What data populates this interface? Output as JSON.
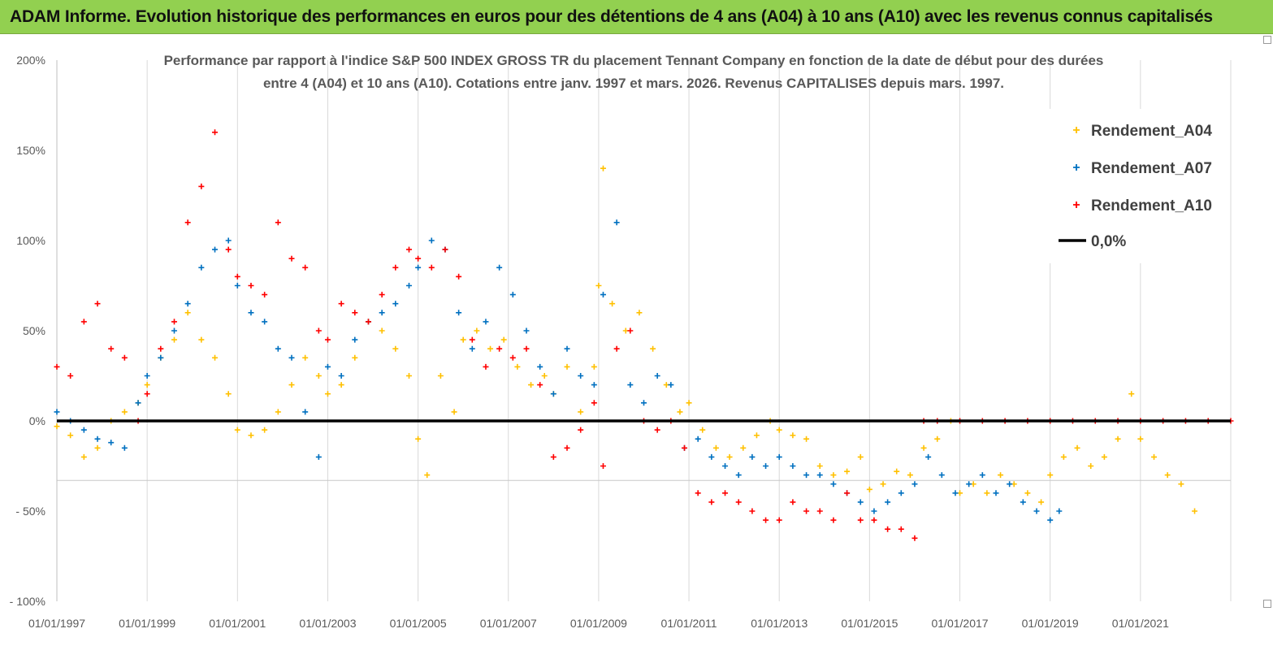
{
  "banner": {
    "title": "ADAM Informe. Evolution historique des performances en euros pour des détentions de 4 ans (A04) à 10 ans (A10) avec les revenus connus capitalisés"
  },
  "chart_data": {
    "type": "scatter",
    "title_line1": "Performance par rapport à l'indice S&P 500 INDEX GROSS TR  du placement Tennant Company en fonction de la date de début pour des durées",
    "title_line2": "entre 4 (A04) et 10 ans (A10). Cotations entre janv. 1997 et mars. 2026. Revenus CAPITALISES depuis mars. 1997.",
    "xlabel": "",
    "ylabel": "",
    "xlim": [
      1997.0,
      2023.0
    ],
    "ylim": [
      -100,
      200
    ],
    "y_ticks": [
      200,
      150,
      100,
      50,
      0,
      -50,
      -100
    ],
    "y_tick_labels": [
      "200%",
      "150%",
      "100%",
      "50%",
      "0%",
      "- 50%",
      "- 100%"
    ],
    "x_ticks": [
      1997,
      1999,
      2001,
      2003,
      2005,
      2007,
      2009,
      2011,
      2013,
      2015,
      2017,
      2019,
      2021
    ],
    "x_tick_labels": [
      "01/01/1997",
      "01/01/1999",
      "01/01/2001",
      "01/01/2003",
      "01/01/2005",
      "01/01/2007",
      "01/01/2009",
      "01/01/2011",
      "01/01/2013",
      "01/01/2015",
      "01/01/2017",
      "01/01/2019",
      "01/01/2021"
    ],
    "grid": "vertical",
    "legend_position": "top-right",
    "series": [
      {
        "name": "Rendement_A04",
        "color": "#ffc000",
        "x": [
          1997.0,
          1997.3,
          1997.6,
          1997.9,
          1998.2,
          1998.5,
          1998.8,
          1999.0,
          1999.3,
          1999.6,
          1999.9,
          2000.2,
          2000.5,
          2000.8,
          2001.0,
          2001.3,
          2001.6,
          2001.9,
          2002.2,
          2002.5,
          2002.8,
          2003.0,
          2003.3,
          2003.6,
          2003.9,
          2004.2,
          2004.5,
          2004.8,
          2005.0,
          2005.2,
          2005.5,
          2005.8,
          2006.0,
          2006.3,
          2006.6,
          2006.9,
          2007.2,
          2007.5,
          2007.8,
          2008.0,
          2008.3,
          2008.6,
          2008.9,
          2009.0,
          2009.1,
          2009.3,
          2009.6,
          2009.9,
          2010.2,
          2010.5,
          2010.8,
          2011.0,
          2011.3,
          2011.6,
          2011.9,
          2012.2,
          2012.5,
          2012.8,
          2013.0,
          2013.3,
          2013.6,
          2013.9,
          2014.2,
          2014.5,
          2014.8,
          2015.0,
          2015.3,
          2015.6,
          2015.9,
          2016.2,
          2016.5,
          2016.8,
          2017.0,
          2017.3,
          2017.6,
          2017.9,
          2018.2,
          2018.5,
          2018.8,
          2019.0,
          2019.3,
          2019.6,
          2019.9,
          2020.2,
          2020.5,
          2020.8,
          2021.0,
          2021.3,
          2021.6,
          2021.9,
          2022.2
        ],
        "y": [
          -3,
          -8,
          -20,
          -15,
          0,
          5,
          10,
          20,
          35,
          45,
          60,
          45,
          35,
          15,
          -5,
          -8,
          -5,
          5,
          20,
          35,
          25,
          15,
          20,
          35,
          55,
          50,
          40,
          25,
          -10,
          -30,
          25,
          5,
          45,
          50,
          40,
          45,
          30,
          20,
          25,
          15,
          30,
          5,
          30,
          75,
          140,
          65,
          50,
          60,
          40,
          20,
          5,
          10,
          -5,
          -15,
          -20,
          -15,
          -8,
          0,
          -5,
          -8,
          -10,
          -25,
          -30,
          -28,
          -20,
          -38,
          -35,
          -28,
          -30,
          -15,
          -10,
          0,
          -40,
          -35,
          -40,
          -30,
          -35,
          -40,
          -45,
          -30,
          -20,
          -15,
          -25,
          -20,
          -10,
          15,
          -10,
          -20,
          -30,
          -35,
          -50
        ]
      },
      {
        "name": "Rendement_A07",
        "color": "#0070c0",
        "x": [
          1997.0,
          1997.3,
          1997.6,
          1997.9,
          1998.2,
          1998.5,
          1998.8,
          1999.0,
          1999.3,
          1999.6,
          1999.9,
          2000.2,
          2000.5,
          2000.8,
          2001.0,
          2001.3,
          2001.6,
          2001.9,
          2002.2,
          2002.5,
          2002.8,
          2003.0,
          2003.3,
          2003.6,
          2003.9,
          2004.2,
          2004.5,
          2004.8,
          2005.0,
          2005.3,
          2005.6,
          2005.9,
          2006.2,
          2006.5,
          2006.8,
          2007.1,
          2007.4,
          2007.7,
          2008.0,
          2008.3,
          2008.6,
          2008.9,
          2009.1,
          2009.4,
          2009.7,
          2010.0,
          2010.3,
          2010.6,
          2010.9,
          2011.2,
          2011.5,
          2011.8,
          2012.1,
          2012.4,
          2012.7,
          2013.0,
          2013.3,
          2013.6,
          2013.9,
          2014.2,
          2014.5,
          2014.8,
          2015.1,
          2015.4,
          2015.7,
          2016.0,
          2016.3,
          2016.6,
          2016.9,
          2017.2,
          2017.5,
          2017.8,
          2018.1,
          2018.4,
          2018.7,
          2019.0,
          2019.2
        ],
        "y": [
          5,
          0,
          -5,
          -10,
          -12,
          -15,
          10,
          25,
          35,
          50,
          65,
          85,
          95,
          100,
          75,
          60,
          55,
          40,
          35,
          5,
          -20,
          30,
          25,
          45,
          55,
          60,
          65,
          75,
          85,
          100,
          95,
          60,
          40,
          55,
          85,
          70,
          50,
          30,
          15,
          40,
          25,
          20,
          70,
          110,
          20,
          10,
          25,
          20,
          -15,
          -10,
          -20,
          -25,
          -30,
          -20,
          -25,
          -20,
          -25,
          -30,
          -30,
          -35,
          -40,
          -45,
          -50,
          -45,
          -40,
          -35,
          -20,
          -30,
          -40,
          -35,
          -30,
          -40,
          -35,
          -45,
          -50,
          -55,
          -50
        ]
      },
      {
        "name": "Rendement_A10",
        "color": "#ff0000",
        "x": [
          1997.0,
          1997.3,
          1997.6,
          1997.9,
          1998.2,
          1998.5,
          1998.8,
          1999.0,
          1999.3,
          1999.6,
          1999.9,
          2000.2,
          2000.5,
          2000.8,
          2001.0,
          2001.3,
          2001.6,
          2001.9,
          2002.2,
          2002.5,
          2002.8,
          2003.0,
          2003.3,
          2003.6,
          2003.9,
          2004.2,
          2004.5,
          2004.8,
          2005.0,
          2005.3,
          2005.6,
          2005.9,
          2006.2,
          2006.5,
          2006.8,
          2007.1,
          2007.4,
          2007.7,
          2008.0,
          2008.3,
          2008.6,
          2008.9,
          2009.1,
          2009.4,
          2009.7,
          2010.0,
          2010.3,
          2010.6,
          2010.9,
          2011.2,
          2011.5,
          2011.8,
          2012.1,
          2012.4,
          2012.7,
          2013.0,
          2013.3,
          2013.6,
          2013.9,
          2014.2,
          2014.5,
          2014.8,
          2015.1,
          2015.4,
          2015.7,
          2016.0,
          2016.2,
          2016.5,
          2017.0,
          2017.5,
          2018.0,
          2018.5,
          2019.0,
          2019.5,
          2020.0,
          2020.5,
          2021.0,
          2021.5,
          2022.0,
          2022.5,
          2023.0
        ],
        "y": [
          30,
          25,
          55,
          65,
          40,
          35,
          0,
          15,
          40,
          55,
          110,
          130,
          160,
          95,
          80,
          75,
          70,
          110,
          90,
          85,
          50,
          45,
          65,
          60,
          55,
          70,
          85,
          95,
          90,
          85,
          95,
          80,
          45,
          30,
          40,
          35,
          40,
          20,
          -20,
          -15,
          -5,
          10,
          -25,
          40,
          50,
          0,
          -5,
          0,
          -15,
          -40,
          -45,
          -40,
          -45,
          -50,
          -55,
          -55,
          -45,
          -50,
          -50,
          -55,
          -40,
          -55,
          -55,
          -60,
          -60,
          -65,
          0,
          0,
          0,
          0,
          0,
          0,
          0,
          0,
          0,
          0,
          0,
          0,
          0,
          0,
          0
        ]
      },
      {
        "name": "0,0%",
        "color": "#000000",
        "x": [
          1997.0,
          2023.0
        ],
        "y": [
          0,
          0
        ]
      }
    ],
    "legend": [
      "Rendement_A04",
      "Rendement_A07",
      "Rendement_A10",
      "0,0%"
    ]
  }
}
